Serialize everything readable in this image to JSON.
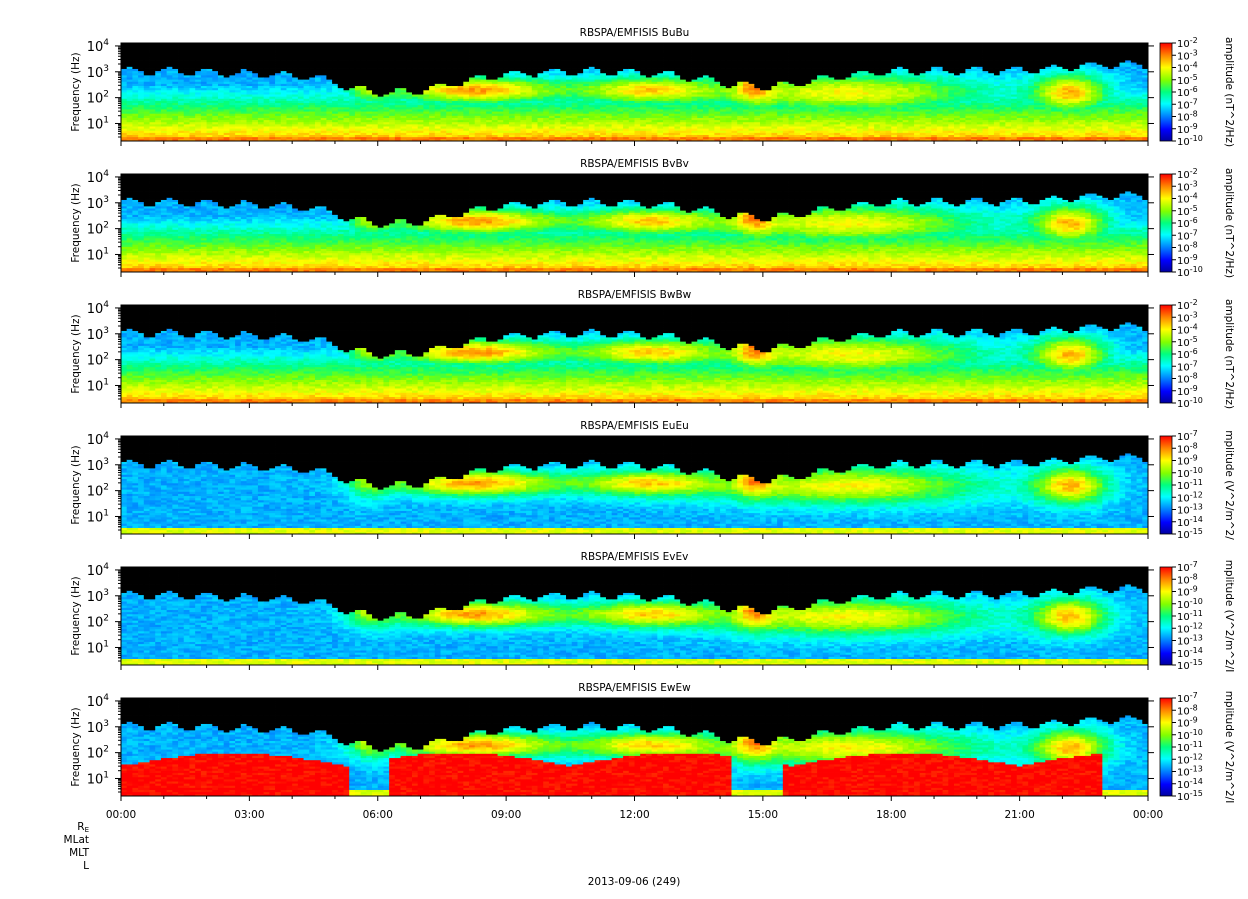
{
  "chart_data": {
    "type": "heatmap",
    "x_tick_labels": [
      "00:00",
      "03:00",
      "06:00",
      "09:00",
      "12:00",
      "15:00",
      "18:00",
      "21:00",
      "00:00"
    ],
    "x_range_hours": [
      0,
      24
    ],
    "date_label": "2013-09-06 (249)",
    "orbit_labels": [
      "R_E",
      "MLat",
      "MLT",
      "L"
    ],
    "panels": [
      {
        "title": "RBSPA/EMFISIS  BuBu",
        "ylabel": "Frequency (Hz)",
        "y_scale": "log",
        "y_tick_labels": [
          [
            "10",
            "1"
          ],
          [
            "10",
            "2"
          ],
          [
            "10",
            "3"
          ],
          [
            "10",
            "4"
          ]
        ],
        "y_exponents": [
          1,
          2,
          3,
          4
        ],
        "colorbar_label": "amplitude (nT^2/Hz)",
        "colorbar_ticks": [
          "10^-2",
          "10^-3",
          "10^-4",
          "10^-5",
          "10^-6",
          "10^-7",
          "10^-8",
          "10^-9",
          "10^-10"
        ],
        "cbar_exponents": [
          -2,
          -3,
          -4,
          -5,
          -6,
          -7,
          -8,
          -9,
          -10
        ],
        "kind": "B"
      },
      {
        "title": "RBSPA/EMFISIS  BvBv",
        "ylabel": "Frequency (Hz)",
        "y_scale": "log",
        "y_tick_labels": [
          [
            "10",
            "1"
          ],
          [
            "10",
            "2"
          ],
          [
            "10",
            "3"
          ],
          [
            "10",
            "4"
          ]
        ],
        "y_exponents": [
          1,
          2,
          3,
          4
        ],
        "colorbar_label": "amplitude (nT^2/Hz)",
        "colorbar_ticks": [
          "10^-2",
          "10^-3",
          "10^-4",
          "10^-5",
          "10^-6",
          "10^-7",
          "10^-8",
          "10^-9",
          "10^-10"
        ],
        "cbar_exponents": [
          -2,
          -3,
          -4,
          -5,
          -6,
          -7,
          -8,
          -9,
          -10
        ],
        "kind": "B"
      },
      {
        "title": "RBSPA/EMFISIS  BwBw",
        "ylabel": "Frequency (Hz)",
        "y_scale": "log",
        "y_tick_labels": [
          [
            "10",
            "1"
          ],
          [
            "10",
            "2"
          ],
          [
            "10",
            "3"
          ],
          [
            "10",
            "4"
          ]
        ],
        "y_exponents": [
          1,
          2,
          3,
          4
        ],
        "colorbar_label": "amplitude (nT^2/Hz)",
        "colorbar_ticks": [
          "10^-2",
          "10^-3",
          "10^-4",
          "10^-5",
          "10^-6",
          "10^-7",
          "10^-8",
          "10^-9",
          "10^-10"
        ],
        "cbar_exponents": [
          -2,
          -3,
          -4,
          -5,
          -6,
          -7,
          -8,
          -9,
          -10
        ],
        "kind": "B"
      },
      {
        "title": "RBSPA/EMFISIS  EuEu",
        "ylabel": "Frequency (Hz)",
        "y_scale": "log",
        "y_tick_labels": [
          [
            "10",
            "1"
          ],
          [
            "10",
            "2"
          ],
          [
            "10",
            "3"
          ],
          [
            "10",
            "4"
          ]
        ],
        "y_exponents": [
          1,
          2,
          3,
          4
        ],
        "colorbar_label": "mplitude (V^2/m^2/",
        "colorbar_ticks": [
          "10^-7",
          "10^-8",
          "10^-9",
          "10^-10",
          "10^-11",
          "10^-12",
          "10^-13",
          "10^-14",
          "10^-15"
        ],
        "cbar_exponents": [
          -7,
          -8,
          -9,
          -10,
          -11,
          -12,
          -13,
          -14,
          -15
        ],
        "kind": "E"
      },
      {
        "title": "RBSPA/EMFISIS  EvEv",
        "ylabel": "Frequency (Hz)",
        "y_scale": "log",
        "y_tick_labels": [
          [
            "10",
            "1"
          ],
          [
            "10",
            "2"
          ],
          [
            "10",
            "3"
          ],
          [
            "10",
            "4"
          ]
        ],
        "y_exponents": [
          1,
          2,
          3,
          4
        ],
        "colorbar_label": "mplitude (V^2/m^2/I",
        "colorbar_ticks": [
          "10^-7",
          "10^-8",
          "10^-9",
          "10^-10",
          "10^-11",
          "10^-12",
          "10^-13",
          "10^-14",
          "10^-15"
        ],
        "cbar_exponents": [
          -7,
          -8,
          -9,
          -10,
          -11,
          -12,
          -13,
          -14,
          -15
        ],
        "kind": "E"
      },
      {
        "title": "RBSPA/EMFISIS  EwEw",
        "ylabel": "Frequency (Hz)",
        "y_scale": "log",
        "y_tick_labels": [
          [
            "10",
            "1"
          ],
          [
            "10",
            "2"
          ],
          [
            "10",
            "3"
          ],
          [
            "10",
            "4"
          ]
        ],
        "y_exponents": [
          1,
          2,
          3,
          4
        ],
        "colorbar_label": "mplitude (V^2/m^2/I",
        "colorbar_ticks": [
          "10^-7",
          "10^-8",
          "10^-9",
          "10^-10",
          "10^-11",
          "10^-12",
          "10^-13",
          "10^-14",
          "10^-15"
        ],
        "cbar_exponents": [
          -7,
          -8,
          -9,
          -10,
          -11,
          -12,
          -13,
          -14,
          -15
        ],
        "kind": "Ew"
      }
    ],
    "colormap": [
      "#000000",
      "#00008b",
      "#0000ff",
      "#0080ff",
      "#00ffff",
      "#00ff80",
      "#80ff00",
      "#ffff00",
      "#ff8000",
      "#ff0000"
    ]
  }
}
